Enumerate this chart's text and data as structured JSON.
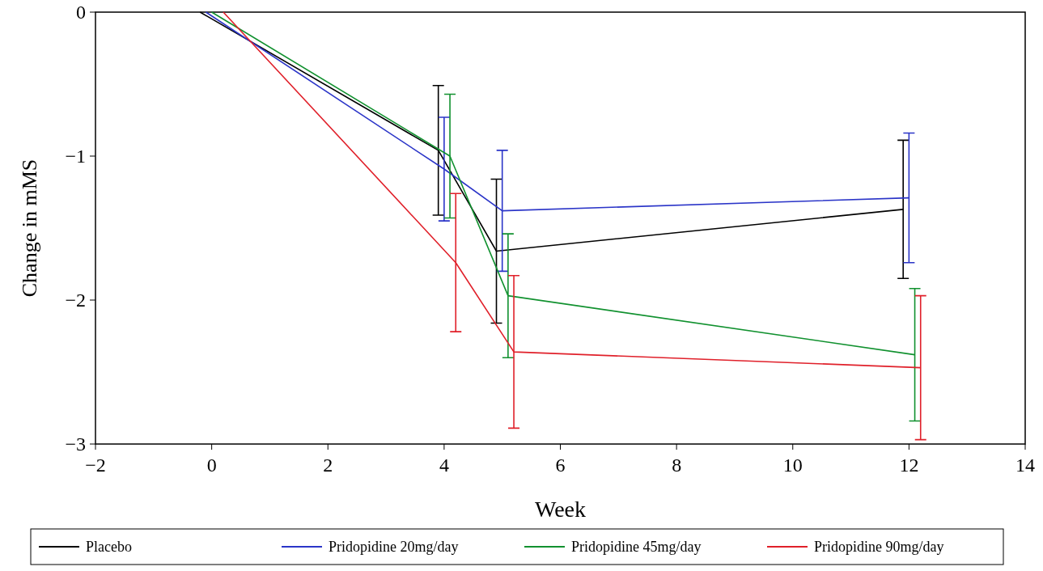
{
  "chart_data": {
    "type": "line",
    "xlabel": "Week",
    "ylabel": "Change in mMS",
    "xlim": [
      -2,
      14
    ],
    "xticks": [
      {
        "value": -2,
        "label": "−2"
      },
      0,
      2,
      4,
      6,
      8,
      10,
      12,
      14
    ],
    "ylim": [
      -3,
      0
    ],
    "yticks": [
      {
        "value": -3,
        "label": "−3"
      },
      {
        "value": -2,
        "label": "−2"
      },
      {
        "value": -1,
        "label": "−1"
      },
      0
    ],
    "grid": false,
    "legend": "bottom",
    "marker": "none",
    "line_style": "solid",
    "series": [
      {
        "name": "Placebo",
        "color": "#000000",
        "x": [
          -0.2,
          3.9,
          4.9,
          11.9
        ],
        "values": [
          0,
          -0.96,
          -1.66,
          -1.37
        ],
        "errors": [
          null,
          0.45,
          0.5,
          0.48
        ]
      },
      {
        "name": "Pridopidine 20mg/day",
        "color": "#2b35c8",
        "x": [
          -0.1,
          4.0,
          5.0,
          12.0
        ],
        "values": [
          0,
          -1.09,
          -1.38,
          -1.29
        ],
        "errors": [
          null,
          0.36,
          0.42,
          0.45
        ]
      },
      {
        "name": "Pridopidine 45mg/day",
        "color": "#11912f",
        "x": [
          0,
          4.1,
          5.1,
          12.1
        ],
        "values": [
          0,
          -1.0,
          -1.97,
          -2.38
        ],
        "errors": [
          null,
          0.43,
          0.43,
          0.46
        ]
      },
      {
        "name": "Pridopidine 90mg/day",
        "color": "#e0202a",
        "x": [
          0.2,
          4.2,
          5.2,
          12.2
        ],
        "values": [
          0,
          -1.74,
          -2.36,
          -2.47
        ],
        "errors": [
          null,
          0.48,
          0.53,
          0.5
        ]
      }
    ]
  }
}
